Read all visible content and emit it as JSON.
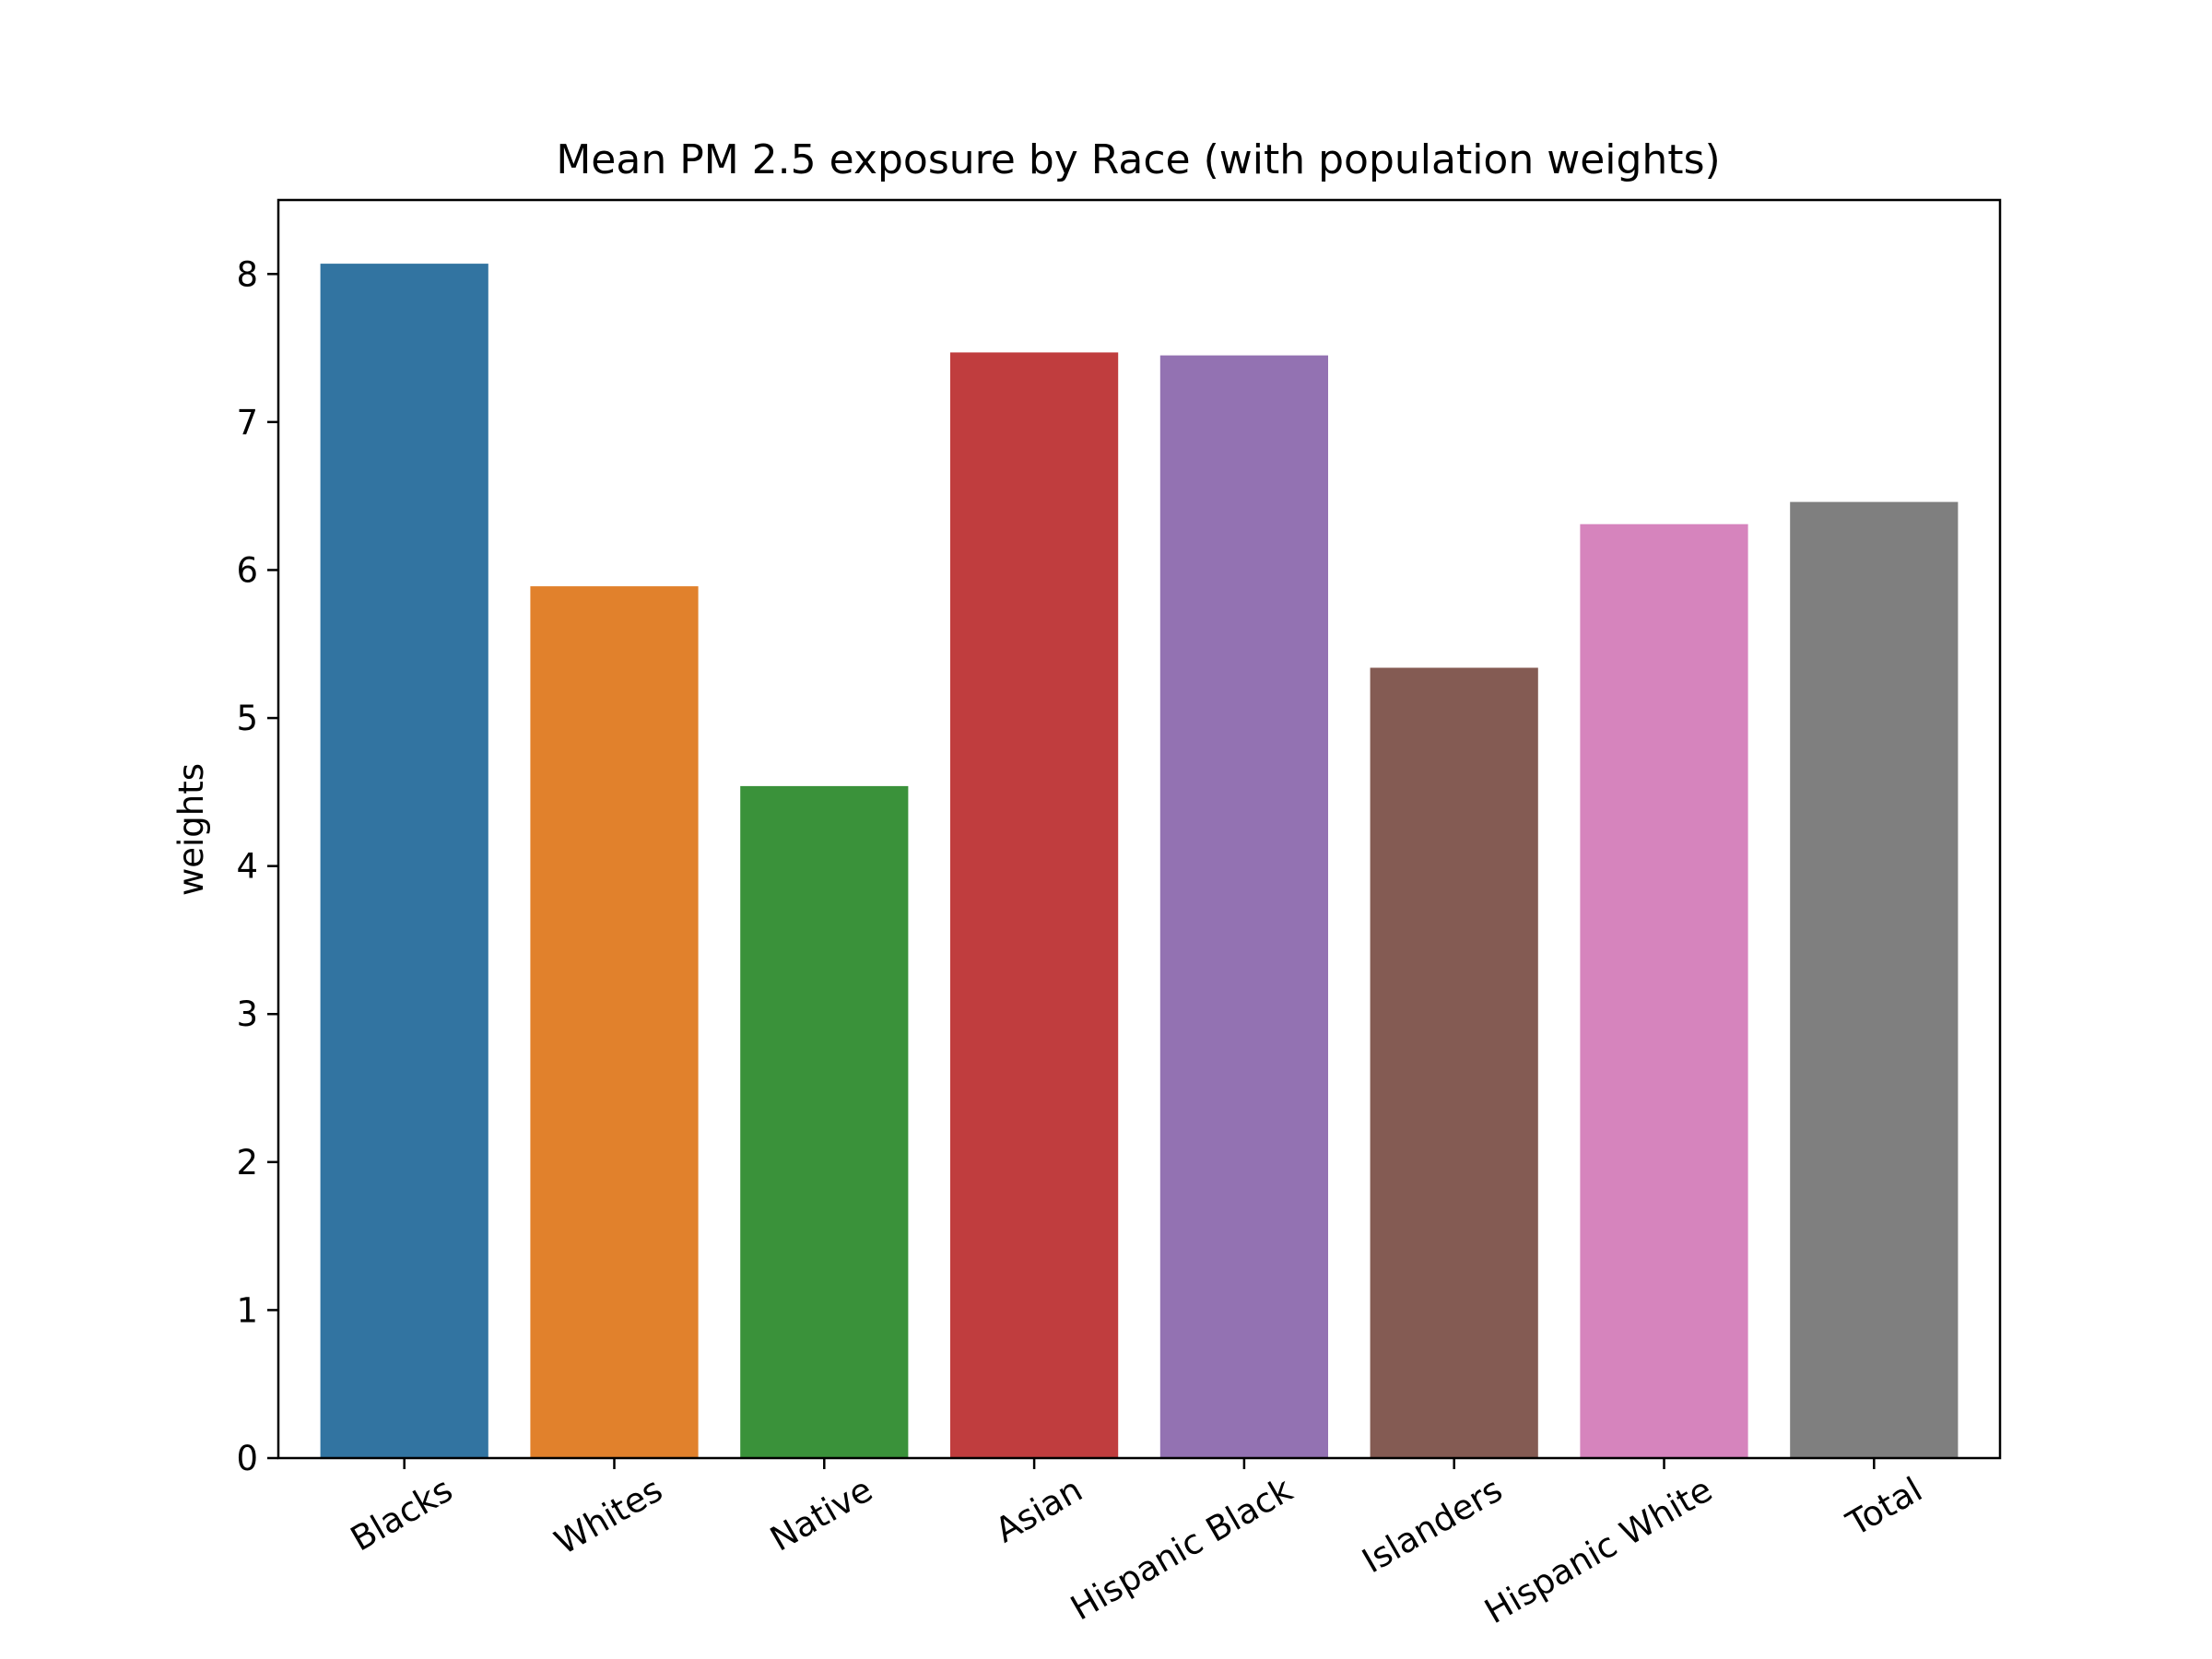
{
  "chart_data": {
    "type": "bar",
    "title": "Mean PM 2.5 exposure by Race (with population weights)",
    "xlabel": "",
    "ylabel": "weights",
    "categories": [
      "Blacks",
      "Whites",
      "Native",
      "Asian",
      "Hispanic Black",
      "Islanders",
      "Hispanic White",
      "Total"
    ],
    "values": [
      8.07,
      5.89,
      4.54,
      7.47,
      7.45,
      5.34,
      6.31,
      6.46
    ],
    "colors": [
      "#3274a1",
      "#e1812c",
      "#3a923a",
      "#c03d3e",
      "#9372b2",
      "#845b53",
      "#d684bd",
      "#7f7f7f"
    ],
    "ylim": [
      0,
      8.5
    ],
    "yticks": [
      "0",
      "1",
      "2",
      "3",
      "4",
      "5",
      "6",
      "7",
      "8"
    ],
    "grid": false,
    "legend": "none"
  }
}
